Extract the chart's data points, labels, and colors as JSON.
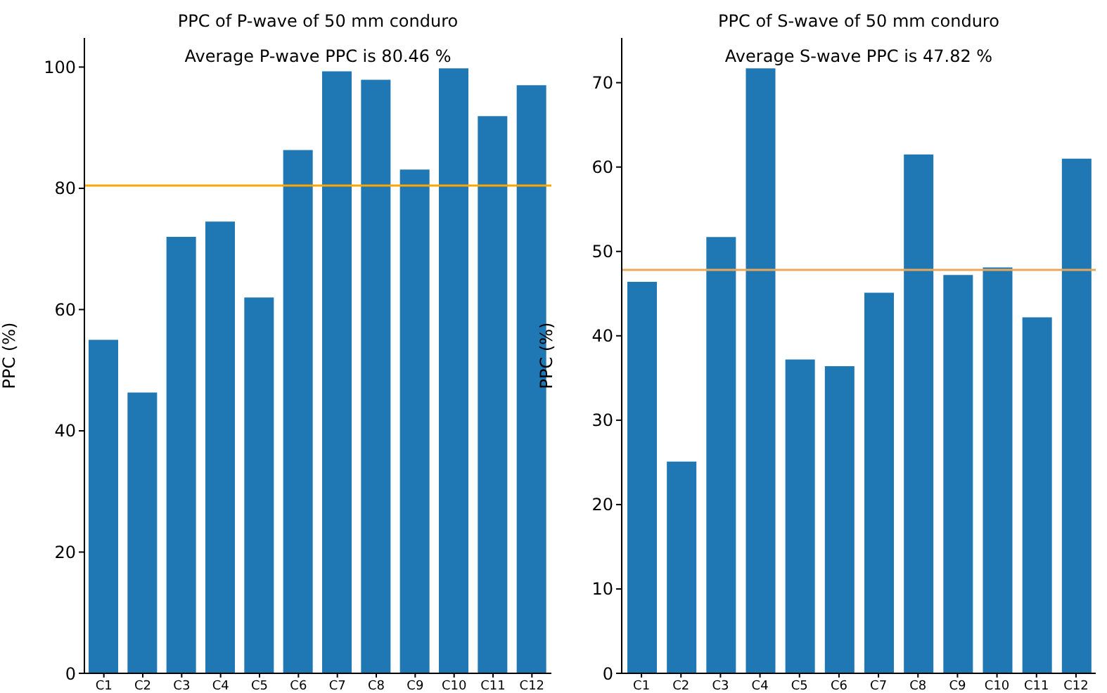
{
  "chart_data": [
    {
      "type": "bar",
      "title": "PPC of P-wave of 50 mm conduro",
      "ylabel": "PPC (%)",
      "categories": [
        "C1",
        "C2",
        "C3",
        "C4",
        "C5",
        "C6",
        "C7",
        "C8",
        "C9",
        "C10",
        "C11",
        "C12"
      ],
      "values": [
        55,
        46.3,
        72,
        74.5,
        62,
        86.3,
        99.3,
        97.9,
        83.1,
        99.8,
        91.9,
        97
      ],
      "color": "#1f77b4",
      "ylim": [
        0,
        104.8
      ],
      "yticks": [
        0,
        20,
        40,
        60,
        80,
        100
      ],
      "grid": false,
      "ref_lines": [
        {
          "axis": "y",
          "value": 80.46,
          "color": "#ffa500"
        }
      ],
      "annotations": [
        "Average P-wave PPC is 80.46 %"
      ]
    },
    {
      "type": "bar",
      "title": "PPC of S-wave of 50 mm conduro",
      "ylabel": "PPC (%)",
      "categories": [
        "C1",
        "C2",
        "C3",
        "C4",
        "C5",
        "C6",
        "C7",
        "C8",
        "C9",
        "C10",
        "C11",
        "C12"
      ],
      "values": [
        46.4,
        25.1,
        51.7,
        71.7,
        37.2,
        36.4,
        45.1,
        61.5,
        47.2,
        48.1,
        42.2,
        61.0
      ],
      "color": "#1f77b4",
      "ylim": [
        0,
        75.3
      ],
      "yticks": [
        0,
        10,
        20,
        30,
        40,
        50,
        60,
        70
      ],
      "grid": false,
      "ref_lines": [
        {
          "axis": "y",
          "value": 47.82,
          "color": "#e8a85c"
        }
      ],
      "annotations": [
        "Average S-wave PPC is 47.82 %"
      ]
    }
  ]
}
